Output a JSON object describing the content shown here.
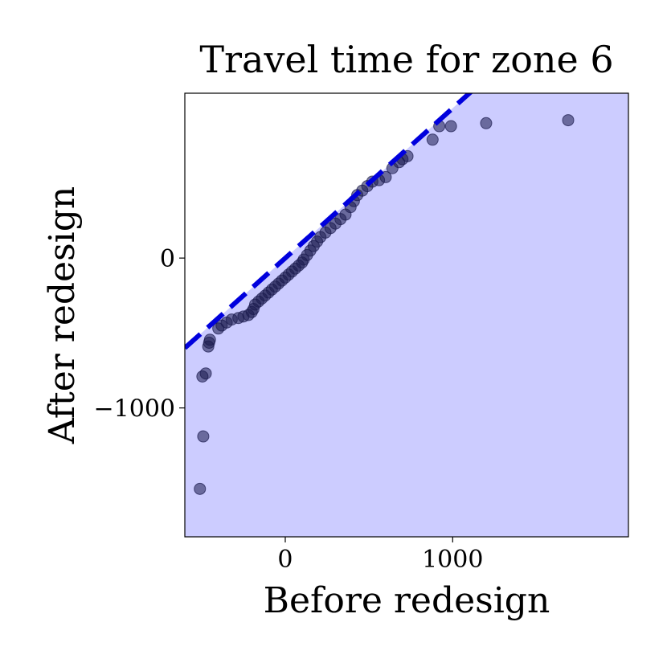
{
  "chart_data": {
    "type": "scatter",
    "title": "Travel time for zone 6",
    "xlabel": "Before redesign",
    "ylabel": "After redesign",
    "xlim": [
      -600,
      2050
    ],
    "ylim": [
      -1860,
      1100
    ],
    "x_ticks": [
      {
        "value": 0,
        "label": "0"
      },
      {
        "value": 1000,
        "label": "1000"
      }
    ],
    "y_ticks": [
      {
        "value": 0,
        "label": "0"
      },
      {
        "value": -1000,
        "label": "−1000"
      }
    ],
    "grid": false,
    "legend": "none",
    "reference_line": {
      "slope": 1.0,
      "intercept": 0,
      "style": "dashed",
      "color": "#0000dd"
    },
    "shaded_region": {
      "description": "area below y = x line",
      "color": "#ccccff"
    },
    "point_color": "#1a1a4d",
    "points": [
      [
        -510,
        -1540
      ],
      [
        -490,
        -1190
      ],
      [
        -495,
        -790
      ],
      [
        -475,
        -770
      ],
      [
        -460,
        -590
      ],
      [
        -455,
        -565
      ],
      [
        -450,
        -545
      ],
      [
        -400,
        -470
      ],
      [
        -380,
        -450
      ],
      [
        -350,
        -430
      ],
      [
        -320,
        -410
      ],
      [
        -280,
        -400
      ],
      [
        -250,
        -390
      ],
      [
        -220,
        -380
      ],
      [
        -200,
        -360
      ],
      [
        -190,
        -340
      ],
      [
        -180,
        -310
      ],
      [
        -160,
        -290
      ],
      [
        -140,
        -270
      ],
      [
        -120,
        -250
      ],
      [
        -100,
        -230
      ],
      [
        -80,
        -210
      ],
      [
        -60,
        -190
      ],
      [
        -40,
        -170
      ],
      [
        -20,
        -150
      ],
      [
        0,
        -130
      ],
      [
        20,
        -110
      ],
      [
        40,
        -90
      ],
      [
        60,
        -70
      ],
      [
        80,
        -50
      ],
      [
        100,
        -30
      ],
      [
        110,
        -10
      ],
      [
        130,
        20
      ],
      [
        150,
        50
      ],
      [
        170,
        80
      ],
      [
        190,
        110
      ],
      [
        210,
        140
      ],
      [
        240,
        170
      ],
      [
        270,
        200
      ],
      [
        300,
        230
      ],
      [
        330,
        260
      ],
      [
        360,
        290
      ],
      [
        390,
        340
      ],
      [
        410,
        380
      ],
      [
        430,
        420
      ],
      [
        460,
        450
      ],
      [
        490,
        480
      ],
      [
        520,
        510
      ],
      [
        560,
        520
      ],
      [
        600,
        540
      ],
      [
        640,
        600
      ],
      [
        680,
        640
      ],
      [
        700,
        660
      ],
      [
        730,
        680
      ],
      [
        880,
        790
      ],
      [
        920,
        880
      ],
      [
        990,
        880
      ],
      [
        1200,
        900
      ],
      [
        1690,
        920
      ]
    ]
  }
}
